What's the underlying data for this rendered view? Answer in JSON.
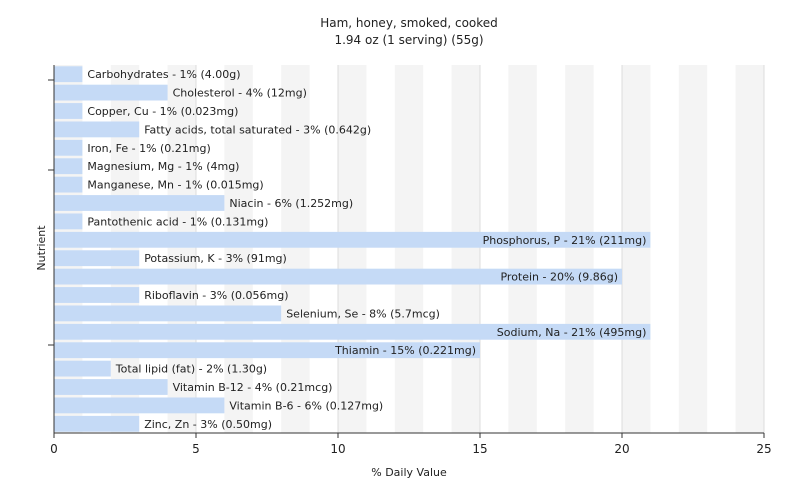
{
  "chart_data": {
    "type": "bar",
    "orientation": "horizontal",
    "title": "Ham, honey, smoked, cooked",
    "subtitle": "1.94 oz (1 serving) (55g)",
    "xlabel": "% Daily Value",
    "ylabel": "Nutrient",
    "xlim": [
      0,
      25
    ],
    "xticks": [
      0,
      5,
      10,
      15,
      20,
      25
    ],
    "grid": true,
    "bar_color": "#c5daf6",
    "categories": [
      "Carbohydrates",
      "Cholesterol",
      "Copper, Cu",
      "Fatty acids, total saturated",
      "Iron, Fe",
      "Magnesium, Mg",
      "Manganese, Mn",
      "Niacin",
      "Pantothenic acid",
      "Phosphorus, P",
      "Potassium, K",
      "Protein",
      "Riboflavin",
      "Selenium, Se",
      "Sodium, Na",
      "Thiamin",
      "Total lipid (fat)",
      "Vitamin B-12",
      "Vitamin B-6",
      "Zinc, Zn"
    ],
    "values": [
      1,
      4,
      1,
      3,
      1,
      1,
      1,
      6,
      1,
      21,
      3,
      20,
      3,
      8,
      21,
      15,
      2,
      4,
      6,
      3
    ],
    "labels": [
      "Carbohydrates - 1% (4.00g)",
      "Cholesterol - 4% (12mg)",
      "Copper, Cu - 1% (0.023mg)",
      "Fatty acids, total saturated - 3% (0.642g)",
      "Iron, Fe - 1% (0.21mg)",
      "Magnesium, Mg - 1% (4mg)",
      "Manganese, Mn - 1% (0.015mg)",
      "Niacin - 6% (1.252mg)",
      "Pantothenic acid - 1% (0.131mg)",
      "Phosphorus, P - 21% (211mg)",
      "Potassium, K - 3% (91mg)",
      "Protein - 20% (9.86g)",
      "Riboflavin - 3% (0.056mg)",
      "Selenium, Se - 8% (5.7mcg)",
      "Sodium, Na - 21% (495mg)",
      "Thiamin - 15% (0.221mg)",
      "Total lipid (fat) - 2% (1.30g)",
      "Vitamin B-12 - 4% (0.21mcg)",
      "Vitamin B-6 - 6% (0.127mg)",
      "Zinc, Zn - 3% (0.50mg)"
    ]
  }
}
